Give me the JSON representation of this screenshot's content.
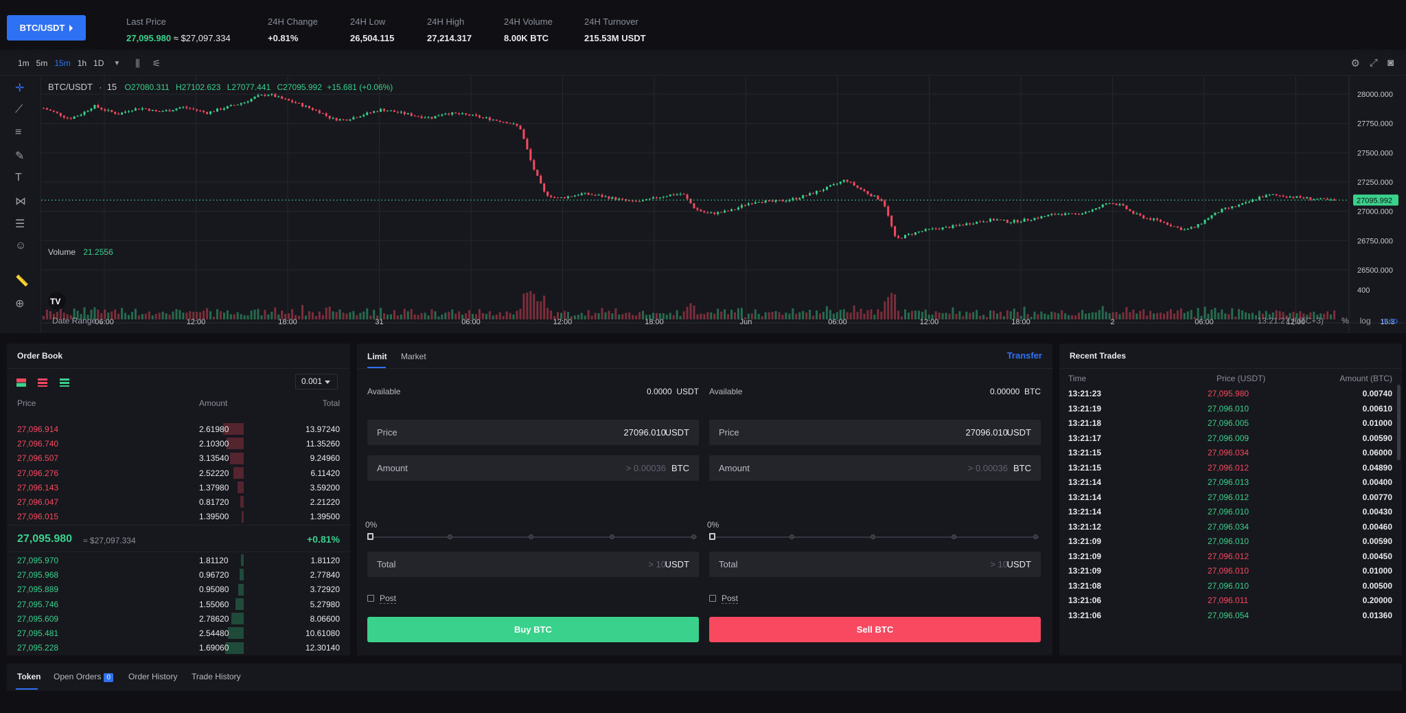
{
  "header": {
    "pair": "BTC/USDT",
    "stats": [
      {
        "label": "Last Price",
        "value": "27,095.980",
        "approx": "≈ $27,097.334",
        "color": "green"
      },
      {
        "label": "24H Change",
        "value": "+0.81%",
        "color": "green"
      },
      {
        "label": "24H Low",
        "value": "26,504.115"
      },
      {
        "label": "24H High",
        "value": "27,214.317"
      },
      {
        "label": "24H Volume",
        "value": "8.00K BTC"
      },
      {
        "label": "24H Turnover",
        "value": "215.53M USDT"
      }
    ]
  },
  "chart": {
    "intervals": [
      "1m",
      "5m",
      "15m",
      "1h",
      "1D"
    ],
    "active_interval": "15m",
    "legend_symbol": "BTC/USDT",
    "legend_interval": "15",
    "ohlc": {
      "o": "O27080.311",
      "h": "H27102.623",
      "l": "L27077.441",
      "c": "C27095.992",
      "chg": "+15.681 (+0.06%)"
    },
    "volume_label": "Volume",
    "volume_value": "21.2556",
    "price_ticks": [
      "28000.000",
      "27750.000",
      "27500.000",
      "27250.000",
      "27000.000",
      "26750.000",
      "26500.000"
    ],
    "volume_tick": "400",
    "current_price_tag": "27095.992",
    "time_ticks": [
      "06:00",
      "12:00",
      "18:00",
      "31",
      "06:00",
      "12:00",
      "18:00",
      "Jun",
      "06:00",
      "12:00",
      "18:00",
      "2",
      "06:00",
      "12:00",
      "15:3"
    ],
    "date_range": "Date Range",
    "clock": "13:21:27 (UTC+3)",
    "scale_opts": [
      "%",
      "log",
      "auto"
    ],
    "colors": {
      "up": "#3ad18c",
      "down": "#f84960"
    }
  },
  "chart_data": {
    "type": "candlestick",
    "y_axis": {
      "min": 26500,
      "max": 28000
    },
    "price_polyline": [
      27880,
      27840,
      27790,
      27830,
      27900,
      27860,
      27830,
      27870,
      27880,
      27850,
      27860,
      27890,
      27870,
      27840,
      27870,
      27900,
      27930,
      27980,
      28000,
      27960,
      27930,
      27890,
      27850,
      27790,
      27780,
      27810,
      27840,
      27870,
      27850,
      27830,
      27810,
      27800,
      27840,
      27830,
      27820,
      27800,
      27780,
      27760,
      27720,
      27390,
      27150,
      27110,
      27130,
      27150,
      27140,
      27120,
      27100,
      27080,
      27090,
      27120,
      27140,
      27150,
      27020,
      26980,
      26990,
      27010,
      27060,
      27090,
      27080,
      27090,
      27110,
      27140,
      27180,
      27220,
      27270,
      27200,
      27140,
      27090,
      26760,
      26800,
      26830,
      26850,
      26860,
      26880,
      26900,
      26920,
      26930,
      26910,
      26920,
      26940,
      26960,
      26980,
      26970,
      26990,
      27020,
      27080,
      27050,
      26980,
      26940,
      26920,
      26880,
      26840,
      26870,
      26950,
      27010,
      27040,
      27070,
      27120,
      27140,
      27130,
      27120,
      27110,
      27100,
      27090
    ]
  },
  "orderbook": {
    "title": "Order Book",
    "precision": "0.001",
    "headers": {
      "price": "Price",
      "amount": "Amount",
      "total": "Total"
    },
    "asks": [
      {
        "price": "27,096.914",
        "amount": "2.61980",
        "total": "13.97240",
        "depth": 0.06
      },
      {
        "price": "27,096.740",
        "amount": "2.10300",
        "total": "11.35260",
        "depth": 0.05
      },
      {
        "price": "27,096.507",
        "amount": "3.13540",
        "total": "9.24960",
        "depth": 0.04
      },
      {
        "price": "27,096.276",
        "amount": "2.52220",
        "total": "6.11420",
        "depth": 0.03
      },
      {
        "price": "27,096.143",
        "amount": "1.37980",
        "total": "3.59200",
        "depth": 0.018
      },
      {
        "price": "27,096.047",
        "amount": "0.81720",
        "total": "2.21220",
        "depth": 0.01
      },
      {
        "price": "27,096.015",
        "amount": "1.39500",
        "total": "1.39500",
        "depth": 0.006
      }
    ],
    "last_price": "27,095.980",
    "last_approx": "≈ $27,097.334",
    "last_change": "+0.81%",
    "bids": [
      {
        "price": "27,095.970",
        "amount": "1.81120",
        "total": "1.81120",
        "depth": 0.008
      },
      {
        "price": "27,095.968",
        "amount": "0.96720",
        "total": "2.77840",
        "depth": 0.012
      },
      {
        "price": "27,095.889",
        "amount": "0.95080",
        "total": "3.72920",
        "depth": 0.016
      },
      {
        "price": "27,095.746",
        "amount": "1.55060",
        "total": "5.27980",
        "depth": 0.023
      },
      {
        "price": "27,095.609",
        "amount": "2.78620",
        "total": "8.06600",
        "depth": 0.035
      },
      {
        "price": "27,095.481",
        "amount": "2.54480",
        "total": "10.61080",
        "depth": 0.046
      },
      {
        "price": "27,095.228",
        "amount": "1.69060",
        "total": "12.30140",
        "depth": 0.053
      }
    ]
  },
  "trade_form": {
    "tabs": [
      "Limit",
      "Market"
    ],
    "transfer": "Transfer",
    "buy": {
      "available_label": "Available",
      "available_value": "0.0000",
      "available_unit": "USDT",
      "price_label": "Price",
      "price_value": "27096.010",
      "price_unit": "USDT",
      "amount_label": "Amount",
      "amount_placeholder": "> 0.00036",
      "amount_unit": "BTC",
      "percent": "0%",
      "total_label": "Total",
      "total_placeholder": "> 10",
      "total_unit": "USDT",
      "post": "Post",
      "button": "Buy BTC"
    },
    "sell": {
      "available_label": "Available",
      "available_value": "0.00000",
      "available_unit": "BTC",
      "price_label": "Price",
      "price_value": "27096.010",
      "price_unit": "USDT",
      "amount_label": "Amount",
      "amount_placeholder": "> 0.00036",
      "amount_unit": "BTC",
      "percent": "0%",
      "total_label": "Total",
      "total_placeholder": "> 10",
      "total_unit": "USDT",
      "post": "Post",
      "button": "Sell BTC"
    }
  },
  "recent_trades": {
    "title": "Recent Trades",
    "headers": {
      "time": "Time",
      "price": "Price (USDT)",
      "amount": "Amount (BTC)"
    },
    "rows": [
      {
        "time": "13:21:23",
        "price": "27,095.980",
        "amount": "0.00740",
        "side": "down"
      },
      {
        "time": "13:21:19",
        "price": "27,096.010",
        "amount": "0.00610",
        "side": "up"
      },
      {
        "time": "13:21:18",
        "price": "27,096.005",
        "amount": "0.01000",
        "side": "up"
      },
      {
        "time": "13:21:17",
        "price": "27,096.009",
        "amount": "0.00590",
        "side": "up"
      },
      {
        "time": "13:21:15",
        "price": "27,096.034",
        "amount": "0.06000",
        "side": "down"
      },
      {
        "time": "13:21:15",
        "price": "27,096.012",
        "amount": "0.04890",
        "side": "down"
      },
      {
        "time": "13:21:14",
        "price": "27,096.013",
        "amount": "0.00400",
        "side": "up"
      },
      {
        "time": "13:21:14",
        "price": "27,096.012",
        "amount": "0.00770",
        "side": "up"
      },
      {
        "time": "13:21:14",
        "price": "27,096.010",
        "amount": "0.00430",
        "side": "up"
      },
      {
        "time": "13:21:12",
        "price": "27,096.034",
        "amount": "0.00460",
        "side": "up"
      },
      {
        "time": "13:21:09",
        "price": "27,096.010",
        "amount": "0.00590",
        "side": "up"
      },
      {
        "time": "13:21:09",
        "price": "27,096.012",
        "amount": "0.00450",
        "side": "down"
      },
      {
        "time": "13:21:09",
        "price": "27,096.010",
        "amount": "0.01000",
        "side": "down"
      },
      {
        "time": "13:21:08",
        "price": "27,096.010",
        "amount": "0.00500",
        "side": "up"
      },
      {
        "time": "13:21:06",
        "price": "27,096.011",
        "amount": "0.20000",
        "side": "down"
      },
      {
        "time": "13:21:06",
        "price": "27,096.054",
        "amount": "0.01360",
        "side": "up"
      }
    ]
  },
  "bottom_tabs": {
    "token": "Token",
    "open_orders": "Open Orders",
    "open_orders_count": "0",
    "order_history": "Order History",
    "trade_history": "Trade History"
  }
}
